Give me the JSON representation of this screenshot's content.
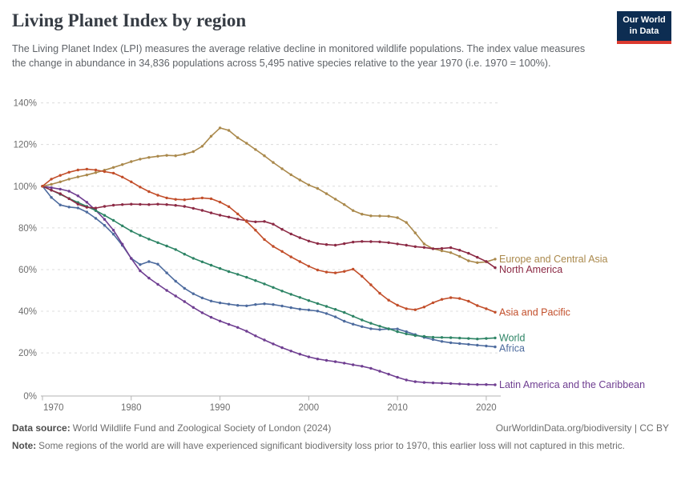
{
  "logo": {
    "line1": "Our World",
    "line2": "in Data"
  },
  "header": {
    "title": "Living Planet Index by region",
    "subtitle": "The Living Planet Index (LPI) measures the average relative decline in monitored wildlife populations. The index value measures the change in abundance in 34,836 populations across 5,495 native species relative to the year 1970 (i.e. 1970 = 100%)."
  },
  "chart_data": {
    "type": "line",
    "title": "Living Planet Index by region",
    "xlabel": "",
    "ylabel": "",
    "ylim": [
      0,
      140
    ],
    "yticks": [
      0,
      20,
      40,
      60,
      80,
      100,
      120,
      140
    ],
    "y_tick_suffix": "%",
    "xticks": [
      1970,
      1980,
      1990,
      2000,
      2010,
      2020
    ],
    "grid": "dashed-horizontal",
    "legend_position": "right-of-line-ends",
    "marker": "dot-every-year",
    "years": [
      1970,
      1971,
      1972,
      1973,
      1974,
      1975,
      1976,
      1977,
      1978,
      1979,
      1980,
      1981,
      1982,
      1983,
      1984,
      1985,
      1986,
      1987,
      1988,
      1989,
      1990,
      1991,
      1992,
      1993,
      1994,
      1995,
      1996,
      1997,
      1998,
      1999,
      2000,
      2001,
      2002,
      2003,
      2004,
      2005,
      2006,
      2007,
      2008,
      2009,
      2010,
      2011,
      2012,
      2013,
      2014,
      2015,
      2016,
      2017,
      2018,
      2019,
      2020,
      2021
    ],
    "series": [
      {
        "name": "Africa",
        "color": "#4d6b9e",
        "values": [
          100,
          94.6,
          91,
          90,
          89.6,
          87.6,
          84.6,
          81.2,
          77,
          71.6,
          65.4,
          62.4,
          63.8,
          62.6,
          58.4,
          54.4,
          51,
          48.4,
          46.4,
          44.9,
          44,
          43.4,
          42.8,
          42.6,
          43.2,
          43.6,
          43.2,
          42.5,
          41.7,
          41,
          40.6,
          40.1,
          38.9,
          37.3,
          35.2,
          33.8,
          32.6,
          31.6,
          31.2,
          31.5,
          31.5,
          30.2,
          28.8,
          27.4,
          26.4,
          25.5,
          24.9,
          24.5,
          24.1,
          23.7,
          23.3,
          22.9
        ]
      },
      {
        "name": "Latin America and the Caribbean",
        "color": "#6f3e91",
        "values": [
          100,
          99.3,
          98.6,
          97.6,
          95.4,
          92.3,
          88.4,
          84.1,
          78.9,
          72.2,
          65.3,
          59.4,
          55.9,
          52.9,
          50,
          47.3,
          44.6,
          41.8,
          39.3,
          37.1,
          35.3,
          33.7,
          32.2,
          30.4,
          28.2,
          26.2,
          24.3,
          22.5,
          20.9,
          19.4,
          18.1,
          17.1,
          16.4,
          15.8,
          15.1,
          14.3,
          13.6,
          12.6,
          11.2,
          9.8,
          8.3,
          7,
          6.2,
          5.8,
          5.6,
          5.5,
          5.3,
          5.1,
          4.9,
          4.8,
          4.8,
          4.7
        ]
      },
      {
        "name": "World",
        "color": "#2d8465",
        "values": [
          100,
          98.1,
          96.1,
          94.1,
          92.2,
          90.3,
          88.3,
          86,
          83.6,
          81,
          78.5,
          76.4,
          74.6,
          72.9,
          71.3,
          69.6,
          67.4,
          65.4,
          63.7,
          62.1,
          60.5,
          59,
          57.7,
          56.3,
          54.7,
          53.1,
          51.4,
          49.7,
          48.1,
          46.6,
          45.1,
          43.7,
          42.3,
          40.9,
          39.4,
          37.6,
          35.8,
          34.2,
          32.8,
          31.6,
          30.2,
          29.1,
          28.3,
          27.9,
          27.5,
          27.4,
          27.3,
          27.1,
          26.9,
          26.7,
          26.9,
          27.2
        ]
      },
      {
        "name": "Europe and Central Asia",
        "color": "#aa894c",
        "values": [
          100,
          100.9,
          102.1,
          103.4,
          104.5,
          105.4,
          106.5,
          107.7,
          109,
          110.4,
          111.8,
          113,
          113.8,
          114.4,
          114.8,
          114.6,
          115.4,
          116.6,
          119.2,
          124,
          128,
          126.8,
          123.3,
          120.6,
          117.6,
          114.6,
          111.4,
          108.4,
          105.5,
          103,
          100.6,
          98.9,
          96.4,
          93.8,
          91.2,
          88.3,
          86.6,
          85.8,
          85.7,
          85.6,
          84.9,
          82.6,
          77.6,
          72.3,
          70,
          69,
          68.1,
          66.3,
          64.2,
          63.3,
          63.7,
          65
        ]
      },
      {
        "name": "North America",
        "color": "#8c2a45",
        "values": [
          100,
          98.1,
          96.4,
          94,
          91.4,
          89.9,
          89.5,
          90.3,
          90.9,
          91.2,
          91.4,
          91.3,
          91.2,
          91.4,
          91.2,
          90.8,
          90.3,
          89.4,
          88.4,
          87.2,
          86.1,
          85.2,
          84.2,
          83.4,
          82.9,
          83.1,
          81.8,
          79.3,
          77.1,
          75.3,
          73.7,
          72.5,
          72,
          71.7,
          72.4,
          73.2,
          73.5,
          73.4,
          73.3,
          72.9,
          72.3,
          71.7,
          71,
          70.6,
          70,
          70.1,
          70.5,
          69.3,
          67.8,
          65.9,
          63.9,
          60.9
        ]
      },
      {
        "name": "Asia and Pacific",
        "color": "#c24e2a",
        "values": [
          100,
          103.4,
          105.2,
          106.7,
          107.8,
          108.2,
          107.8,
          107,
          106.3,
          104.4,
          102.1,
          99.6,
          97.4,
          95.7,
          94.4,
          93.7,
          93.5,
          94,
          94.4,
          94,
          92.4,
          90.2,
          86.7,
          83,
          78.9,
          74.4,
          71.1,
          68.7,
          66.1,
          63.8,
          61.6,
          59.8,
          58.8,
          58.4,
          59.1,
          60.2,
          56.8,
          52.7,
          48.6,
          45.3,
          42.9,
          41.2,
          40.7,
          42,
          44.1,
          45.7,
          46.5,
          46.1,
          44.8,
          42.7,
          41.2,
          39.5
        ]
      }
    ]
  },
  "footer": {
    "datasource_label": "Data source:",
    "datasource_text": "World Wildlife Fund and Zoological Society of London (2024)",
    "link": "OurWorldinData.org/biodiversity | CC BY",
    "note_label": "Note:",
    "note_text": "Some regions of the world are will have experienced significant biodiversity loss prior to 1970, this earlier loss will not captured in this metric."
  }
}
